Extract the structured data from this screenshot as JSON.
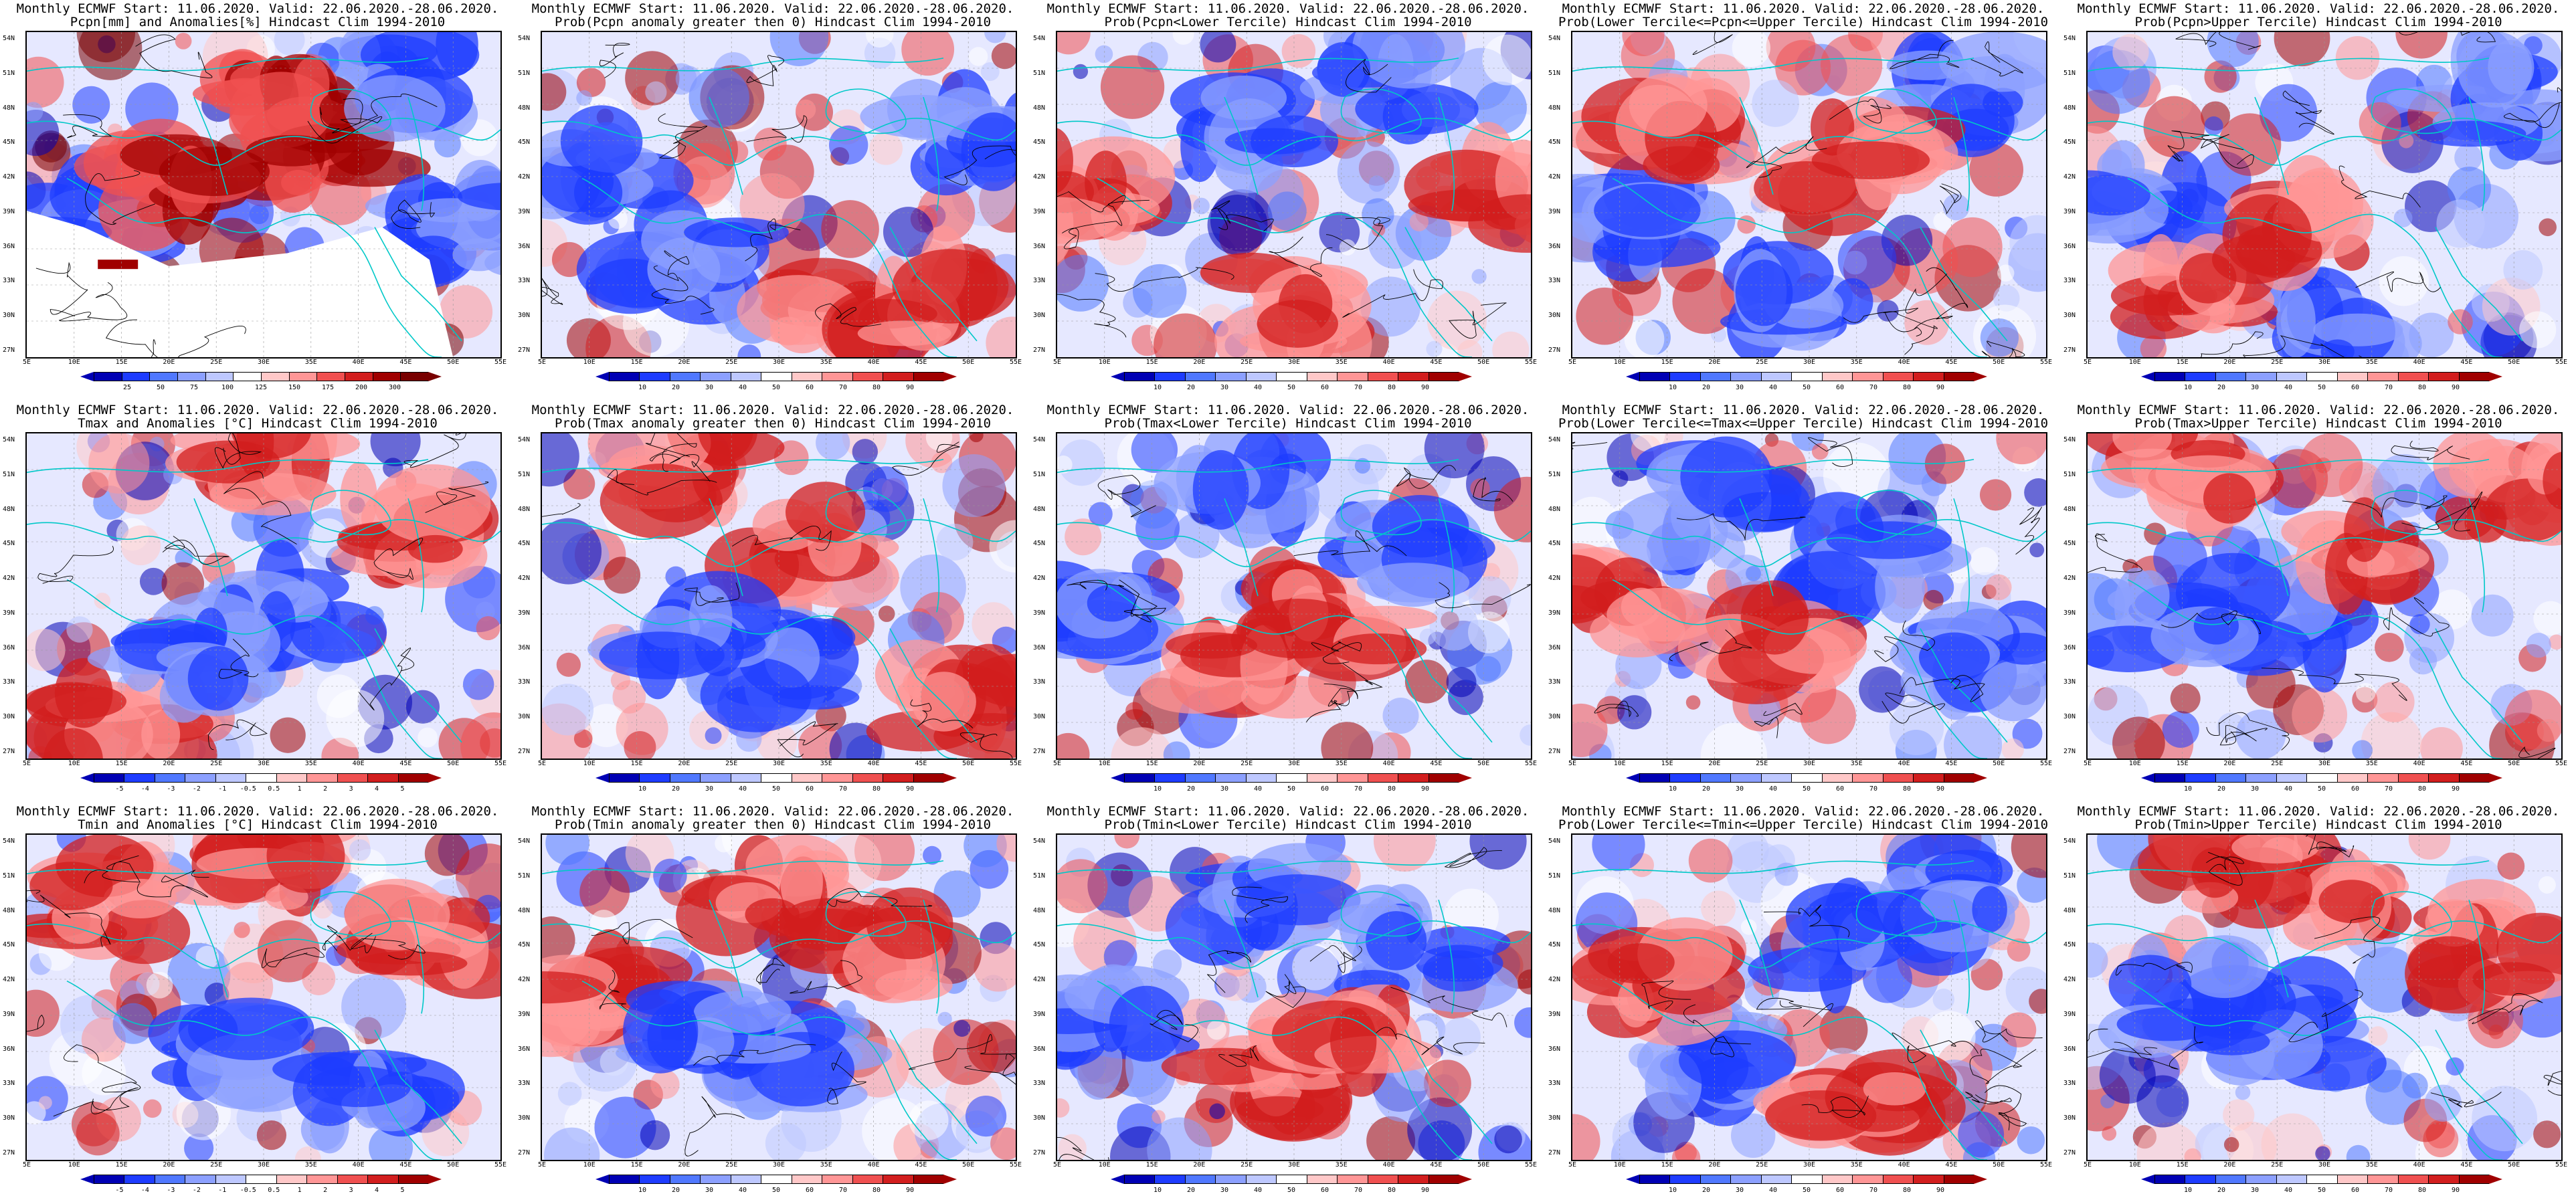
{
  "meta": {
    "header": "Monthly ECMWF Start: 11.06.2020. Valid: 22.06.2020.-28.06.2020.",
    "lat_labels": [
      "54N",
      "51N",
      "48N",
      "45N",
      "42N",
      "39N",
      "36N",
      "33N",
      "30N",
      "27N"
    ],
    "lon_labels": [
      "5E",
      "10E",
      "15E",
      "20E",
      "25E",
      "30E",
      "35E",
      "40E",
      "45E",
      "50E",
      "55E"
    ]
  },
  "palettes": {
    "anom_precip": [
      "#0000b4",
      "#1e3cff",
      "#5078ff",
      "#8ca0ff",
      "#bec8ff",
      "#ffffff",
      "#ffc8c8",
      "#ff9696",
      "#f05050",
      "#d21e1e",
      "#a00000",
      "#780000"
    ],
    "anom_temp": [
      "#0000b4",
      "#1e3cff",
      "#5078ff",
      "#8ca0ff",
      "#bec8ff",
      "#ffffff",
      "#ffc8c8",
      "#ff9696",
      "#f05050",
      "#d21e1e",
      "#a00000"
    ],
    "prob": [
      "#0000b4",
      "#1e3cff",
      "#5078ff",
      "#8ca0ff",
      "#bec8ff",
      "#ffffff",
      "#ffc8c8",
      "#ff9696",
      "#f05050",
      "#d21e1e",
      "#a00000"
    ]
  },
  "panels": [
    {
      "row": 0,
      "col": 0,
      "subtitle": "Pcpn[mm] and Anomalies[%] Hindcast Clim 1994-2010",
      "kind": "precip_anom",
      "palette": "anom_precip",
      "cticks": [
        "25",
        "50",
        "75",
        "100",
        "125",
        "150",
        "175",
        "200",
        "300"
      ],
      "clusters": [
        [
          "red",
          0.55,
          0.2
        ],
        [
          "red",
          0.62,
          0.35
        ],
        [
          "blue",
          0.15,
          0.55
        ],
        [
          "blue",
          0.8,
          0.15
        ],
        [
          "blue",
          0.92,
          0.6
        ],
        [
          "red",
          0.3,
          0.45
        ]
      ]
    },
    {
      "row": 0,
      "col": 1,
      "subtitle": "Prob(Pcpn anomaly greater then 0) Hindcast Clim 1994-2010",
      "kind": "prob",
      "palette": "prob",
      "cticks": [
        "10",
        "20",
        "30",
        "40",
        "50",
        "60",
        "70",
        "80",
        "90"
      ],
      "clusters": [
        [
          "blue",
          0.3,
          0.7
        ],
        [
          "blue",
          0.9,
          0.3
        ],
        [
          "red",
          0.6,
          0.85
        ],
        [
          "red",
          0.78,
          0.82
        ],
        [
          "blue",
          0.12,
          0.4
        ]
      ]
    },
    {
      "row": 0,
      "col": 2,
      "subtitle": "Prob(Pcpn<Lower Tercile) Hindcast Clim 1994-2010",
      "kind": "prob",
      "palette": "prob",
      "cticks": [
        "10",
        "20",
        "30",
        "40",
        "50",
        "60",
        "70",
        "80",
        "90"
      ],
      "clusters": [
        [
          "red",
          0.5,
          0.85
        ],
        [
          "red",
          0.05,
          0.5
        ],
        [
          "red",
          0.95,
          0.5
        ],
        [
          "blue",
          0.4,
          0.3
        ],
        [
          "blue",
          0.7,
          0.15
        ]
      ]
    },
    {
      "row": 0,
      "col": 3,
      "subtitle": "Prob(Lower Tercile<=Pcpn<=Upper Tercile) Hindcast Clim 1994-2010",
      "kind": "prob",
      "palette": "prob",
      "cticks": [
        "10",
        "20",
        "30",
        "40",
        "50",
        "60",
        "70",
        "80",
        "90"
      ],
      "clusters": [
        [
          "blue",
          0.5,
          0.85
        ],
        [
          "blue",
          0.1,
          0.6
        ],
        [
          "blue",
          0.85,
          0.2
        ],
        [
          "red",
          0.2,
          0.3
        ],
        [
          "red",
          0.6,
          0.4
        ]
      ]
    },
    {
      "row": 0,
      "col": 4,
      "subtitle": "Prob(Pcpn>Upper Tercile) Hindcast Clim 1994-2010",
      "kind": "prob",
      "palette": "prob",
      "cticks": [
        "10",
        "20",
        "30",
        "40",
        "50",
        "60",
        "70",
        "80",
        "90"
      ],
      "clusters": [
        [
          "blue",
          0.5,
          0.9
        ],
        [
          "blue",
          0.1,
          0.5
        ],
        [
          "blue",
          0.85,
          0.2
        ],
        [
          "red",
          0.25,
          0.8
        ],
        [
          "red",
          0.45,
          0.6
        ]
      ]
    },
    {
      "row": 1,
      "col": 0,
      "subtitle": "Tmax and Anomalies [°C] Hindcast Clim 1994-2010",
      "kind": "temp_anom",
      "palette": "anom_temp",
      "cticks": [
        "-5",
        "-4",
        "-3",
        "-2",
        "-1",
        "-0.5",
        "0.5",
        "1",
        "2",
        "3",
        "4",
        "5"
      ],
      "clusters": [
        [
          "red",
          0.5,
          0.1
        ],
        [
          "red",
          0.8,
          0.3
        ],
        [
          "red",
          0.2,
          0.9
        ],
        [
          "blue",
          0.55,
          0.55
        ],
        [
          "blue",
          0.35,
          0.7
        ]
      ]
    },
    {
      "row": 1,
      "col": 1,
      "subtitle": "Prob(Tmax anomaly greater then 0) Hindcast Clim 1994-2010",
      "kind": "prob",
      "palette": "prob",
      "cticks": [
        "10",
        "20",
        "30",
        "40",
        "50",
        "60",
        "70",
        "80",
        "90"
      ],
      "clusters": [
        [
          "red",
          0.55,
          0.35
        ],
        [
          "red",
          0.3,
          0.1
        ],
        [
          "red",
          0.9,
          0.85
        ],
        [
          "blue",
          0.5,
          0.7
        ],
        [
          "blue",
          0.3,
          0.6
        ]
      ]
    },
    {
      "row": 1,
      "col": 2,
      "subtitle": "Prob(Tmax<Lower Tercile) Hindcast Clim 1994-2010",
      "kind": "prob",
      "palette": "prob",
      "cticks": [
        "10",
        "20",
        "30",
        "40",
        "50",
        "60",
        "70",
        "80",
        "90"
      ],
      "clusters": [
        [
          "blue",
          0.4,
          0.15
        ],
        [
          "blue",
          0.7,
          0.35
        ],
        [
          "blue",
          0.05,
          0.6
        ],
        [
          "red",
          0.4,
          0.7
        ],
        [
          "red",
          0.6,
          0.55
        ]
      ]
    },
    {
      "row": 1,
      "col": 3,
      "subtitle": "Prob(Lower Tercile<=Tmax<=Upper Tercile) Hindcast Clim 1994-2010",
      "kind": "prob",
      "palette": "prob",
      "cticks": [
        "10",
        "20",
        "30",
        "40",
        "50",
        "60",
        "70",
        "80",
        "90"
      ],
      "clusters": [
        [
          "blue",
          0.6,
          0.4
        ],
        [
          "blue",
          0.85,
          0.7
        ],
        [
          "blue",
          0.3,
          0.2
        ],
        [
          "red",
          0.1,
          0.5
        ],
        [
          "red",
          0.45,
          0.65
        ]
      ]
    },
    {
      "row": 1,
      "col": 4,
      "subtitle": "Prob(Tmax>Upper Tercile) Hindcast Clim 1994-2010",
      "kind": "prob",
      "palette": "prob",
      "cticks": [
        "10",
        "20",
        "30",
        "40",
        "50",
        "60",
        "70",
        "80",
        "90"
      ],
      "clusters": [
        [
          "blue",
          0.4,
          0.6
        ],
        [
          "blue",
          0.2,
          0.55
        ],
        [
          "red",
          0.6,
          0.35
        ],
        [
          "red",
          0.2,
          0.1
        ],
        [
          "red",
          0.9,
          0.2
        ]
      ]
    },
    {
      "row": 2,
      "col": 0,
      "subtitle": "Tmin and Anomalies [°C] Hindcast Clim 1994-2010",
      "kind": "temp_anom",
      "palette": "anom_temp",
      "cticks": [
        "-5",
        "-4",
        "-3",
        "-2",
        "-1",
        "-0.5",
        "0.5",
        "1",
        "2",
        "3",
        "4",
        "5"
      ],
      "clusters": [
        [
          "red",
          0.5,
          0.1
        ],
        [
          "red",
          0.85,
          0.3
        ],
        [
          "red",
          0.15,
          0.2
        ],
        [
          "blue",
          0.4,
          0.65
        ],
        [
          "blue",
          0.7,
          0.8
        ]
      ]
    },
    {
      "row": 2,
      "col": 1,
      "subtitle": "Prob(Tmin anomaly greater then 0) Hindcast Clim 1994-2010",
      "kind": "prob",
      "palette": "prob",
      "cticks": [
        "10",
        "20",
        "30",
        "40",
        "50",
        "60",
        "70",
        "80",
        "90"
      ],
      "clusters": [
        [
          "red",
          0.5,
          0.15
        ],
        [
          "red",
          0.7,
          0.35
        ],
        [
          "red",
          0.1,
          0.5
        ],
        [
          "blue",
          0.5,
          0.7
        ],
        [
          "blue",
          0.35,
          0.6
        ]
      ]
    },
    {
      "row": 2,
      "col": 2,
      "subtitle": "Prob(Tmin<Lower Tercile) Hindcast Clim 1994-2010",
      "kind": "prob",
      "palette": "prob",
      "cticks": [
        "10",
        "20",
        "30",
        "40",
        "50",
        "60",
        "70",
        "80",
        "90"
      ],
      "clusters": [
        [
          "blue",
          0.4,
          0.2
        ],
        [
          "blue",
          0.75,
          0.35
        ],
        [
          "blue",
          0.1,
          0.6
        ],
        [
          "red",
          0.45,
          0.75
        ],
        [
          "red",
          0.6,
          0.6
        ]
      ]
    },
    {
      "row": 2,
      "col": 3,
      "subtitle": "Prob(Lower Tercile<=Tmin<=Upper Tercile) Hindcast Clim 1994-2010",
      "kind": "prob",
      "palette": "prob",
      "cticks": [
        "10",
        "20",
        "30",
        "40",
        "50",
        "60",
        "70",
        "80",
        "90"
      ],
      "clusters": [
        [
          "blue",
          0.55,
          0.35
        ],
        [
          "blue",
          0.8,
          0.2
        ],
        [
          "blue",
          0.3,
          0.7
        ],
        [
          "red",
          0.15,
          0.45
        ],
        [
          "red",
          0.6,
          0.8
        ]
      ]
    },
    {
      "row": 2,
      "col": 4,
      "subtitle": "Prob(Tmin>Upper Tercile) Hindcast Clim 1994-2010",
      "kind": "prob",
      "palette": "prob",
      "cticks": [
        "10",
        "20",
        "30",
        "40",
        "50",
        "60",
        "70",
        "80",
        "90"
      ],
      "clusters": [
        [
          "blue",
          0.4,
          0.6
        ],
        [
          "blue",
          0.2,
          0.5
        ],
        [
          "red",
          0.55,
          0.2
        ],
        [
          "red",
          0.3,
          0.1
        ],
        [
          "red",
          0.85,
          0.35
        ]
      ]
    }
  ]
}
